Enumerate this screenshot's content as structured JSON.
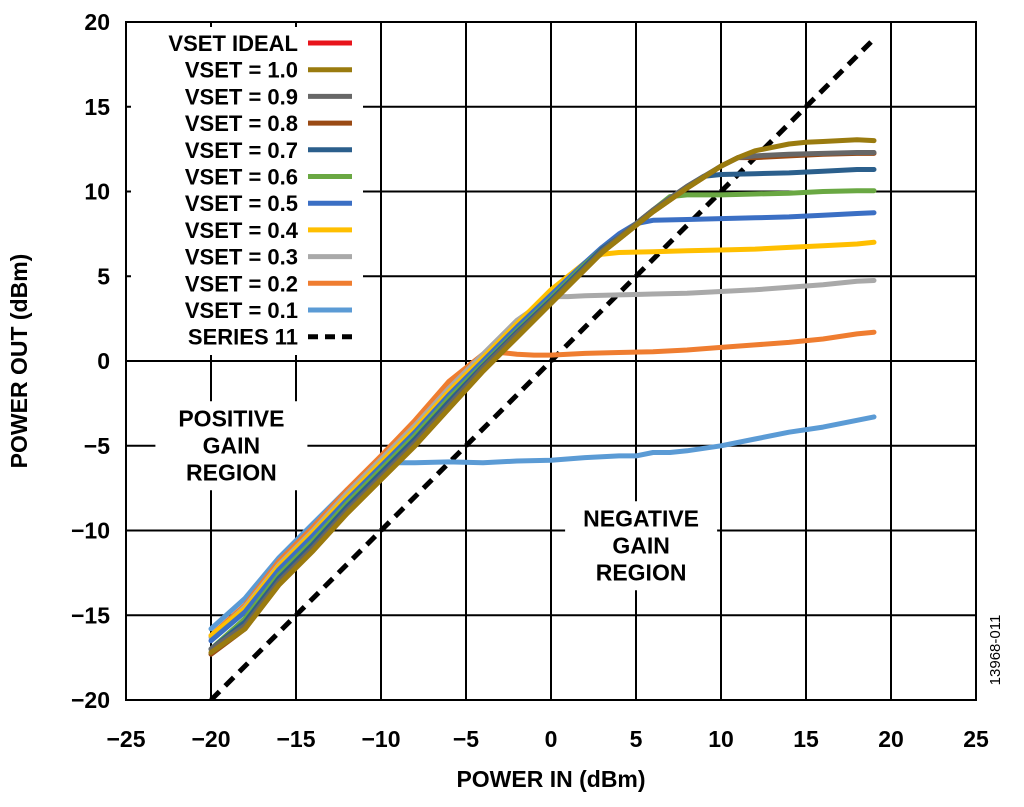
{
  "chart_data": {
    "type": "line",
    "xlabel": "POWER IN (dBm)",
    "ylabel": "POWER OUT (dBm)",
    "xlim": [
      -25,
      25
    ],
    "ylim": [
      -20,
      20
    ],
    "xticks": [
      -25,
      -20,
      -15,
      -10,
      -5,
      0,
      5,
      10,
      15,
      20,
      25
    ],
    "yticks": [
      -20,
      -15,
      -10,
      -5,
      0,
      5,
      10,
      15,
      20
    ],
    "xtick_labels": [
      "−25",
      "−20",
      "−15",
      "−10",
      "−5",
      "0",
      "5",
      "10",
      "15",
      "20",
      "25"
    ],
    "ytick_labels": [
      "−20",
      "−15",
      "−10",
      "−5",
      "0",
      "5",
      "10",
      "15",
      "20"
    ],
    "grid": true,
    "legend_position": "top-left",
    "annotations": [
      {
        "lines": [
          "POSITIVE",
          "GAIN",
          "REGION"
        ],
        "x": -18.8,
        "y": -5
      },
      {
        "lines": [
          "NEGATIVE",
          "GAIN",
          "REGION"
        ],
        "x": 5.3,
        "y": -10.9
      }
    ],
    "figure_id": "13968-011",
    "series": [
      {
        "name": "VSET IDEAL",
        "color": "#e8141b",
        "style": "solid",
        "x": [],
        "y": []
      },
      {
        "name": "VSET = 1.0",
        "color": "#9a7b0f",
        "style": "solid",
        "x": [
          -20,
          -18,
          -16,
          -14,
          -12,
          -10,
          -8,
          -6,
          -4,
          -2,
          0,
          2,
          3,
          4,
          6,
          8,
          10,
          11,
          12,
          13,
          14,
          15,
          16,
          17,
          18,
          19
        ],
        "y": [
          -17.2,
          -15.8,
          -13.2,
          -11.2,
          -9,
          -7,
          -5,
          -2.8,
          -0.6,
          1.4,
          3.4,
          5.4,
          6.4,
          7.2,
          8.8,
          10.2,
          11.5,
          12,
          12.4,
          12.6,
          12.8,
          12.9,
          12.95,
          13,
          13.05,
          13
        ]
      },
      {
        "name": "VSET = 0.9",
        "color": "#676767",
        "style": "solid",
        "x": [
          -20,
          -18,
          -16,
          -14,
          -12,
          -10,
          -8,
          -6,
          -4,
          -2,
          0,
          2,
          3,
          4,
          6,
          8,
          10,
          11,
          12,
          14,
          16,
          18,
          19
        ],
        "y": [
          -17,
          -15.6,
          -13,
          -11,
          -8.8,
          -6.8,
          -4.8,
          -2.6,
          -0.4,
          1.6,
          3.5,
          5.5,
          6.5,
          7.3,
          8.9,
          10.3,
          11.5,
          12,
          12.1,
          12.2,
          12.25,
          12.3,
          12.3
        ]
      },
      {
        "name": "VSET = 0.8",
        "color": "#9a4a14",
        "style": "solid",
        "x": [
          -20,
          -18,
          -16,
          -14,
          -12,
          -10,
          -8,
          -6,
          -4,
          -2,
          0,
          2,
          3,
          4,
          6,
          8,
          10,
          11,
          12,
          14,
          16,
          18,
          19
        ],
        "y": [
          -17.3,
          -15.8,
          -13.2,
          -11.2,
          -9,
          -7,
          -5,
          -2.8,
          -0.6,
          1.4,
          3.4,
          5.4,
          6.4,
          7.2,
          8.8,
          10.2,
          11.5,
          12,
          12,
          12.1,
          12.2,
          12.25,
          12.25
        ]
      },
      {
        "name": "VSET = 0.7",
        "color": "#2b5f8c",
        "style": "solid",
        "x": [
          -20,
          -18,
          -16,
          -14,
          -12,
          -10,
          -8,
          -6,
          -4,
          -2,
          0,
          2,
          3,
          4,
          6,
          8,
          9,
          10,
          12,
          14,
          16,
          18,
          19
        ],
        "y": [
          -17,
          -15.4,
          -12.8,
          -10.8,
          -8.6,
          -6.6,
          -4.6,
          -2.4,
          -0.3,
          1.7,
          3.6,
          5.6,
          6.6,
          7.3,
          8.9,
          10.3,
          10.9,
          11,
          11.05,
          11.1,
          11.2,
          11.3,
          11.3
        ]
      },
      {
        "name": "VSET = 0.6",
        "color": "#6aa843",
        "style": "solid",
        "x": [
          -20,
          -18,
          -16,
          -14,
          -12,
          -10,
          -8,
          -6,
          -4,
          -2,
          0,
          2,
          3,
          4,
          6,
          7,
          8,
          10,
          12,
          14,
          16,
          18,
          19
        ],
        "y": [
          -17,
          -15.2,
          -12.6,
          -10.6,
          -8.4,
          -6.4,
          -4.4,
          -2.2,
          -0.2,
          1.8,
          3.7,
          5.7,
          6.6,
          7.3,
          8.9,
          9.7,
          9.8,
          9.8,
          9.85,
          9.9,
          10,
          10.05,
          10.05
        ]
      },
      {
        "name": "VSET = 0.5",
        "color": "#3b6fc4",
        "style": "solid",
        "x": [
          -20,
          -18,
          -16,
          -14,
          -12,
          -10,
          -8,
          -6,
          -4,
          -2,
          0,
          2,
          3,
          4,
          5,
          6,
          8,
          10,
          12,
          14,
          16,
          18,
          19
        ],
        "y": [
          -16.5,
          -14.8,
          -12.3,
          -10.3,
          -8.2,
          -6.2,
          -4.2,
          -2,
          0,
          2,
          3.9,
          5.8,
          6.7,
          7.5,
          8.1,
          8.3,
          8.35,
          8.4,
          8.45,
          8.5,
          8.6,
          8.7,
          8.75
        ]
      },
      {
        "name": "VSET = 0.4",
        "color": "#ffbf00",
        "style": "solid",
        "x": [
          -20,
          -18,
          -16,
          -14,
          -12,
          -10,
          -8,
          -6,
          -4,
          -2,
          0,
          2,
          3,
          4,
          6,
          8,
          10,
          12,
          14,
          16,
          18,
          19
        ],
        "y": [
          -16.2,
          -14.6,
          -12.1,
          -10.1,
          -8,
          -6,
          -4,
          -1.8,
          0.2,
          2.2,
          4.2,
          5.8,
          6.3,
          6.4,
          6.45,
          6.5,
          6.55,
          6.6,
          6.7,
          6.8,
          6.9,
          7
        ]
      },
      {
        "name": "VSET = 0.3",
        "color": "#a9a9a9",
        "style": "solid",
        "x": [
          -20,
          -18,
          -16,
          -14,
          -12,
          -10,
          -8,
          -6,
          -4,
          -2,
          0,
          1,
          2,
          4,
          6,
          8,
          10,
          12,
          14,
          16,
          18,
          19
        ],
        "y": [
          -16.3,
          -14.5,
          -12,
          -10,
          -7.8,
          -5.8,
          -3.8,
          -1.6,
          0.4,
          2.4,
          3.8,
          3.8,
          3.85,
          3.9,
          3.95,
          4,
          4.1,
          4.2,
          4.35,
          4.5,
          4.7,
          4.75
        ]
      },
      {
        "name": "VSET = 0.2",
        "color": "#ef7d30",
        "style": "solid",
        "x": [
          -20,
          -18,
          -16,
          -14,
          -12,
          -10,
          -8,
          -6,
          -4,
          -3,
          -2,
          -1,
          0,
          1,
          2,
          4,
          6,
          8,
          10,
          12,
          14,
          16,
          18,
          19
        ],
        "y": [
          -16.2,
          -14.4,
          -11.8,
          -9.8,
          -7.6,
          -5.6,
          -3.5,
          -1.2,
          0.4,
          0.5,
          0.4,
          0.35,
          0.35,
          0.4,
          0.45,
          0.5,
          0.55,
          0.65,
          0.8,
          0.95,
          1.1,
          1.3,
          1.6,
          1.7
        ]
      },
      {
        "name": "VSET = 0.1",
        "color": "#5b9bd5",
        "style": "solid",
        "x": [
          -20,
          -18,
          -16,
          -14,
          -12,
          -10,
          -9,
          -8,
          -6,
          -4,
          -2,
          0,
          2,
          4,
          5,
          6,
          7,
          8,
          10,
          12,
          14,
          16,
          18,
          19
        ],
        "y": [
          -15.8,
          -14,
          -11.6,
          -9.6,
          -7.6,
          -6.1,
          -6,
          -6,
          -5.95,
          -6,
          -5.9,
          -5.85,
          -5.7,
          -5.6,
          -5.6,
          -5.4,
          -5.4,
          -5.3,
          -5,
          -4.6,
          -4.2,
          -3.9,
          -3.5,
          -3.3
        ]
      },
      {
        "name": "SERIES 11",
        "color": "#000000",
        "style": "dashed",
        "x": [
          -20,
          19
        ],
        "y": [
          -20,
          19
        ]
      }
    ]
  }
}
